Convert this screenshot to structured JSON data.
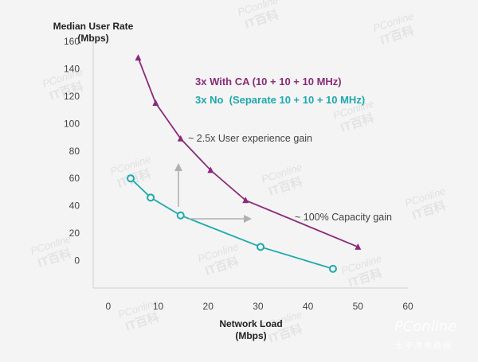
{
  "chart_data": {
    "type": "line",
    "ylabel_line1": "Median User Rate",
    "ylabel_line2": "(Mbps)",
    "xlabel_line1": "Network Load",
    "xlabel_line2": "(Mbps)",
    "xlim": [
      -3,
      60
    ],
    "ylim": [
      -20,
      160
    ],
    "x_ticks": [
      0,
      10,
      20,
      30,
      40,
      50,
      60
    ],
    "y_ticks": [
      0,
      20,
      40,
      60,
      80,
      100,
      120,
      140,
      160
    ],
    "grid": false,
    "series": [
      {
        "name": "3x With CA (10 + 10 + 10 MHz)",
        "color": "#8b2a7a",
        "marker": "triangle",
        "x": [
          6,
          9.5,
          14.5,
          20.5,
          27.5,
          50
        ],
        "y": [
          148,
          115,
          89,
          66,
          44,
          10
        ]
      },
      {
        "name": "3x No  (Separate 10 + 10 + 10 MHz)",
        "color": "#1ea9ad",
        "marker": "circle",
        "x": [
          4.5,
          8.5,
          14.5,
          30.5,
          45
        ],
        "y": [
          60,
          46,
          33,
          10,
          -6
        ]
      }
    ],
    "annotations": [
      {
        "text": "~ 2.5x User experience gain"
      },
      {
        "text": "~ 100% Capacity gain"
      }
    ]
  },
  "watermark": {
    "brand": "PConline",
    "text_upper": "PConline",
    "text_lower": "IT百科",
    "corner_brand": "PConline",
    "corner_sub": "太平洋电脑网"
  }
}
